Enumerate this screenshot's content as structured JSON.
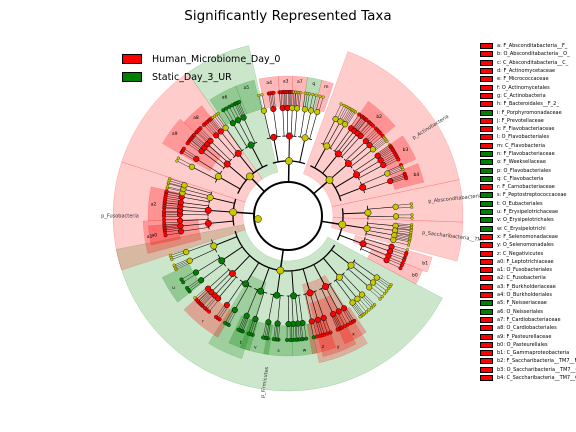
{
  "title": "Significantly Represented Taxa",
  "colors": {
    "red": "#ff0000",
    "green": "#008000",
    "neutral": "#c8c800"
  },
  "legend": [
    {
      "label": "Human_Microbiome_Day_0",
      "color": "#ff0000"
    },
    {
      "label": "Static_Day_3_UR",
      "color": "#008000"
    }
  ],
  "keys": [
    {
      "text": "a: F_Absconditabacteria__F_",
      "color": "red"
    },
    {
      "text": "b: O_Absconditabacteria__O_",
      "color": "red"
    },
    {
      "text": "c: C_Absconditabacteria__C_",
      "color": "red"
    },
    {
      "text": "d: F_Actinomycetaceae",
      "color": "red"
    },
    {
      "text": "e: F_Micrococcaceae",
      "color": "red"
    },
    {
      "text": "f: O_Actinomycetales",
      "color": "red"
    },
    {
      "text": "g: C_Actinobacteria",
      "color": "red"
    },
    {
      "text": "h: F_Bacteroidales__F_2_",
      "color": "red"
    },
    {
      "text": "i: F_Porphyromonadaceae",
      "color": "green"
    },
    {
      "text": "j: F_Prevotellaceae",
      "color": "red"
    },
    {
      "text": "k: F_Flavobacteriaceae",
      "color": "red"
    },
    {
      "text": "l: O_Flavobacteriales",
      "color": "red"
    },
    {
      "text": "m: C_Flavobacteria",
      "color": "red"
    },
    {
      "text": "n: F_Flavobacteriaceae",
      "color": "green"
    },
    {
      "text": "o: F_Weeksellaceae",
      "color": "green"
    },
    {
      "text": "p: O_Flavobacteriales",
      "color": "green"
    },
    {
      "text": "q: C_Flavobacteria",
      "color": "green"
    },
    {
      "text": "r: F_Carnobacteriaceae",
      "color": "red"
    },
    {
      "text": "s: F_Peptostreptococcaceae",
      "color": "green"
    },
    {
      "text": "t: O_Eubacteriales",
      "color": "green"
    },
    {
      "text": "u: F_Erysipelotrichaceae",
      "color": "green"
    },
    {
      "text": "v: O_Erysipelotrichales",
      "color": "green"
    },
    {
      "text": "w: C_Erysipelotrichi",
      "color": "green"
    },
    {
      "text": "x: F_Selenomonadaceae",
      "color": "red"
    },
    {
      "text": "y: O_Selenomonadales",
      "color": "red"
    },
    {
      "text": "z: C_Negativicutes",
      "color": "red"
    },
    {
      "text": "a0: F_Leptotrichiaceae",
      "color": "red"
    },
    {
      "text": "a1: O_Fusobacteriales",
      "color": "red"
    },
    {
      "text": "a2: C_Fusobacteriia",
      "color": "red"
    },
    {
      "text": "a3: F_Burkholderiaceae",
      "color": "red"
    },
    {
      "text": "a4: O_Burkholderiales",
      "color": "red"
    },
    {
      "text": "a5: F_Neisseriaceae",
      "color": "green"
    },
    {
      "text": "a6: O_Neisseriales",
      "color": "green"
    },
    {
      "text": "a7: F_Cardiobacteriaceae",
      "color": "red"
    },
    {
      "text": "a8: O_Cardiobacteriales",
      "color": "red"
    },
    {
      "text": "a9: F_Pasteurellaceae",
      "color": "red"
    },
    {
      "text": "b0: O_Pasteurellales",
      "color": "red"
    },
    {
      "text": "b1: C_Gammaproteobacteria",
      "color": "red"
    },
    {
      "text": "b2: F_Saccharibacteria__TM7__F_",
      "color": "red"
    },
    {
      "text": "b3: O_Saccharibacteria__TM7__O_",
      "color": "red"
    },
    {
      "text": "b4: C_Saccharibacteria__TM7__C_",
      "color": "red"
    }
  ],
  "chart_data": {
    "type": "cladogram",
    "title": "Significantly Represented Taxa",
    "series": [
      {
        "name": "Human_Microbiome_Day_0",
        "color": "#ff0000"
      },
      {
        "name": "Static_Day_3_UR",
        "color": "#008000"
      }
    ],
    "clade_labels": [
      "p_Firmicutes",
      "p_Fusobacteria",
      "p_Actinobacteria",
      "p_Absconditabacteria",
      "p_Saccharibacteria__TM7_"
    ],
    "sectors": [
      {
        "start": 118,
        "end": 259,
        "color": "green",
        "level": "phylum",
        "label_key": "p_Firmicutes"
      },
      {
        "start": 252,
        "end": 288,
        "color": "red",
        "level": "phylum"
      },
      {
        "start": 288,
        "end": 325,
        "color": "red",
        "level": "phylum"
      },
      {
        "start": 325,
        "end": 347,
        "color": "green",
        "level": "phylum"
      },
      {
        "start": 20,
        "end": 78,
        "color": "red",
        "level": "phylum",
        "label_key": "p_Actinobacteria"
      },
      {
        "start": 78,
        "end": 92,
        "color": "red",
        "level": "phylum",
        "label_key": "p_Absconditabacteria"
      },
      {
        "start": 92,
        "end": 105,
        "color": "red",
        "level": "phylum",
        "label_key": "p_Saccharibacteria__TM7_"
      },
      {
        "start": 148,
        "end": 168,
        "color": "red",
        "level": "class"
      },
      {
        "start": 198,
        "end": 212,
        "color": "green",
        "level": "class"
      },
      {
        "start": 152,
        "end": 166,
        "color": "red",
        "level": "order",
        "letter": "y"
      },
      {
        "start": 178,
        "end": 190,
        "color": "green",
        "level": "family",
        "letter": "s"
      },
      {
        "start": 196,
        "end": 205,
        "color": "green",
        "level": "family",
        "letter": "t"
      },
      {
        "start": 210,
        "end": 228,
        "color": "red",
        "level": "family",
        "letter": "r"
      },
      {
        "start": 232,
        "end": 244,
        "color": "green",
        "level": "family",
        "letter": "u"
      },
      {
        "start": 188,
        "end": 200,
        "color": "green",
        "level": "family",
        "letter": "v"
      },
      {
        "start": 168,
        "end": 178,
        "color": "green",
        "level": "family",
        "letter": "w"
      },
      {
        "start": 146,
        "end": 156,
        "color": "red",
        "level": "family",
        "letter": "x"
      },
      {
        "start": 160,
        "end": 170,
        "color": "red",
        "level": "family",
        "letter": "z"
      },
      {
        "start": 255,
        "end": 268,
        "color": "red",
        "level": "order",
        "letter": "a1"
      },
      {
        "start": 258,
        "end": 266,
        "color": "red",
        "level": "family",
        "letter": "a0"
      },
      {
        "start": 268,
        "end": 282,
        "color": "red",
        "level": "family",
        "letter": "a2"
      },
      {
        "start": 35,
        "end": 50,
        "color": "red",
        "level": "family",
        "letter": "b2"
      },
      {
        "start": 55,
        "end": 66,
        "color": "red",
        "level": "family",
        "letter": "b3"
      },
      {
        "start": 68,
        "end": 76,
        "color": "red",
        "level": "family",
        "letter": "b4"
      },
      {
        "start": 106,
        "end": 112,
        "color": "red",
        "level": "class",
        "letter": "b1"
      },
      {
        "start": 112,
        "end": 118,
        "color": "red",
        "level": "order",
        "letter": "b0"
      },
      {
        "start": 300,
        "end": 312,
        "color": "red",
        "level": "order",
        "letter": "a9"
      },
      {
        "start": 312,
        "end": 322,
        "color": "red",
        "level": "family",
        "letter": "a8"
      },
      {
        "start": 326,
        "end": 338,
        "color": "green",
        "level": "family",
        "letter": "a6"
      },
      {
        "start": 338,
        "end": 346,
        "color": "green",
        "level": "family",
        "letter": "a5"
      },
      {
        "start": 348,
        "end": 356,
        "color": "red",
        "level": "family",
        "letter": "a4"
      },
      {
        "start": 356,
        "end": 2,
        "color": "red",
        "level": "family",
        "letter": "a3"
      },
      {
        "start": 2,
        "end": 8,
        "color": "red",
        "level": "family",
        "letter": "a7"
      },
      {
        "start": 8,
        "end": 14,
        "color": "green",
        "level": "family",
        "letter": "q"
      },
      {
        "start": 14,
        "end": 19,
        "color": "red",
        "level": "family",
        "letter": "m"
      }
    ]
  }
}
